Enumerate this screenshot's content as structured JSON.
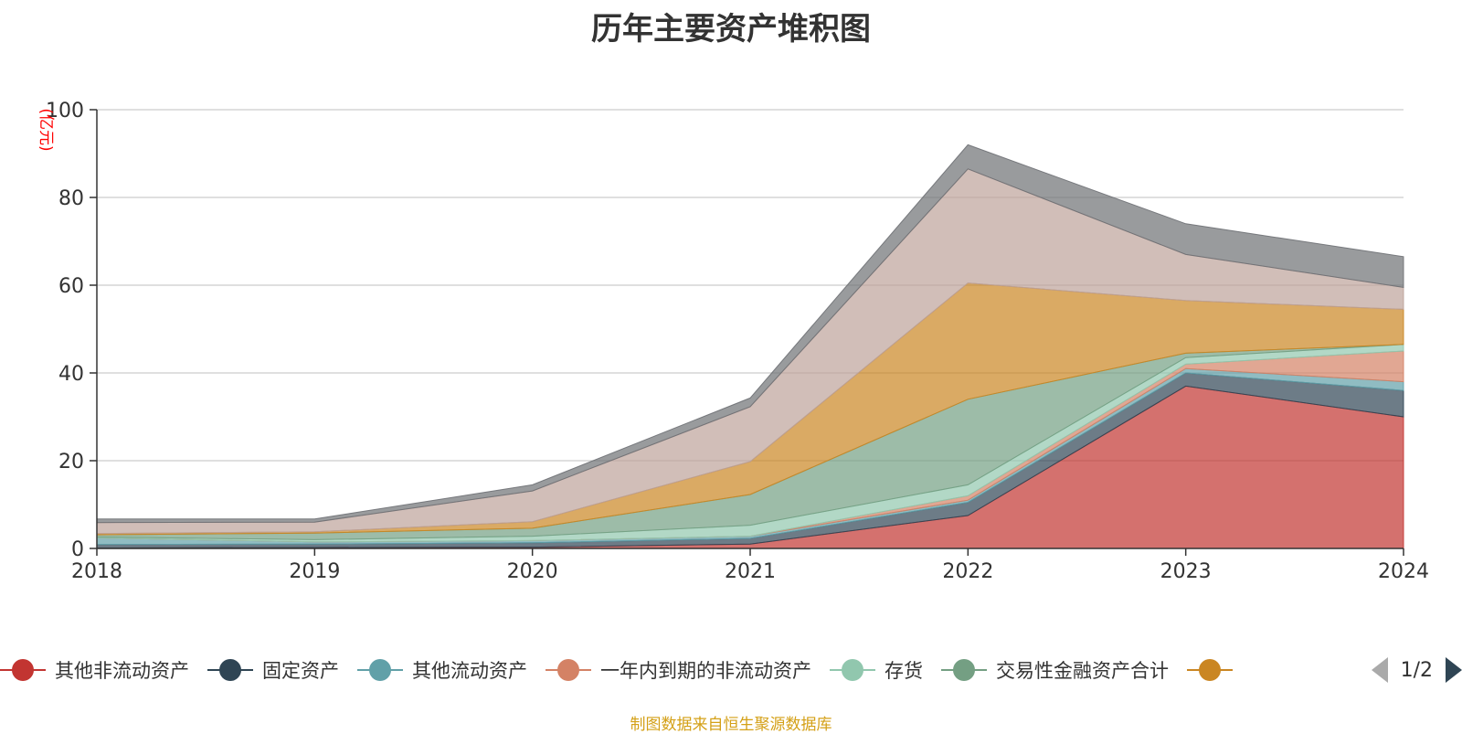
{
  "chart_data": {
    "type": "area",
    "stacked": true,
    "title": "历年主要资产堆积图",
    "ylabel": "(亿元)",
    "x": [
      "2018",
      "2019",
      "2020",
      "2021",
      "2022",
      "2023",
      "2024"
    ],
    "ylim": [
      0,
      100
    ],
    "yticks": [
      "0",
      "20",
      "40",
      "60",
      "80",
      "100"
    ],
    "grid": true,
    "legend_position": "bottom",
    "series": [
      {
        "name": "其他非流动资产",
        "color": "#c23531",
        "values": [
          0.1,
          0.2,
          0.3,
          1.0,
          7.5,
          37.0,
          30.0
        ]
      },
      {
        "name": "固定资产",
        "color": "#2f4554",
        "values": [
          0.8,
          0.8,
          1.0,
          1.3,
          3.0,
          3.0,
          6.0
        ]
      },
      {
        "name": "其他流动资产",
        "color": "#61a0a8",
        "values": [
          1.5,
          0.5,
          0.5,
          0.5,
          0.5,
          1.0,
          2.0
        ]
      },
      {
        "name": "一年内到期的非流动资产",
        "color": "#d48265",
        "values": [
          0.0,
          0.0,
          0.0,
          0.0,
          1.0,
          1.0,
          7.0
        ]
      },
      {
        "name": "存货",
        "color": "#91c7ae",
        "values": [
          0.2,
          0.5,
          1.0,
          2.5,
          2.5,
          1.5,
          1.5
        ]
      },
      {
        "name": "交易性金融资产合计",
        "color": "#749f83",
        "values": [
          0.5,
          1.5,
          1.8,
          7.0,
          19.5,
          1.0,
          0.0
        ]
      },
      {
        "name": "",
        "color": "#ca8622",
        "values": [
          0.3,
          0.3,
          1.5,
          7.5,
          26.5,
          12.0,
          8.0
        ]
      },
      {
        "name": "",
        "color": "#bda29a",
        "values": [
          2.5,
          2.2,
          7.0,
          12.5,
          26.0,
          10.5,
          5.0
        ]
      },
      {
        "name": "",
        "color": "#6e7074",
        "values": [
          0.8,
          0.7,
          1.4,
          2.0,
          5.5,
          7.0,
          7.0
        ]
      }
    ]
  },
  "legend": {
    "page": "1/2"
  },
  "footer": {
    "source": "制图数据来自恒生聚源数据库"
  }
}
